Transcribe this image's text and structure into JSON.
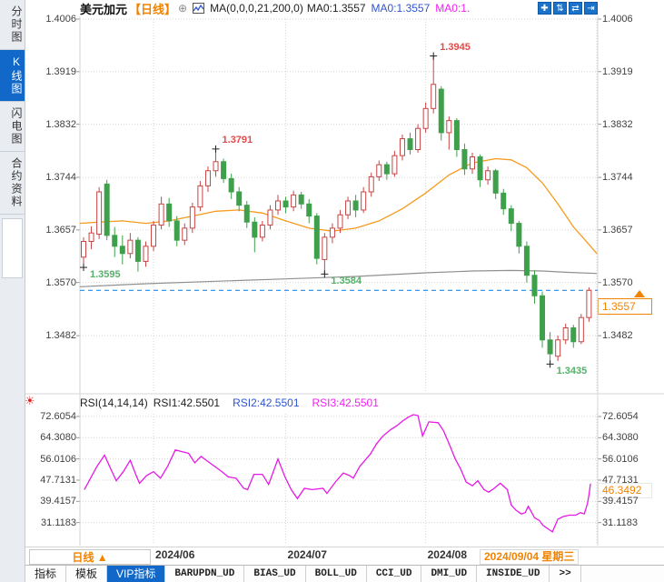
{
  "colors": {
    "up": "#c94444",
    "down": "#3fa04c",
    "ann_red": "#e04a4a",
    "ann_green": "#56b06a",
    "ma_fast": "#f79a1e",
    "ma_slow": "#909090",
    "last_price_line": "#1f8ceb",
    "accent_orange": "#f28300",
    "rsi_line": "#e619e6",
    "text_blue": "#2f55cf",
    "text_pink": "#ee22ee",
    "grid": "#d6d6d6",
    "selected_tab_bg": "#1168c9"
  },
  "sidebar": {
    "tabs": [
      {
        "label": "分时图",
        "selected": false
      },
      {
        "label": "K线图",
        "selected": true
      },
      {
        "label": "闪电图",
        "selected": false
      },
      {
        "label": "合约资料",
        "selected": false
      }
    ]
  },
  "header": {
    "symbol": "美元加元",
    "period_tag": "【日线】",
    "add_icon": "⊕",
    "ma_settings": "MA(0,0,0,21,200,0)",
    "ma0_dark": "MA0:1.3557",
    "ma0_blue": "MA0:1.3557",
    "ma0_pink": "MA0:1."
  },
  "toolbar": {
    "buttons": [
      {
        "name": "pan",
        "glyph": "✚"
      },
      {
        "name": "fit-vertical",
        "glyph": "⇅"
      },
      {
        "name": "auto-scale",
        "glyph": "⇄"
      },
      {
        "name": "page-forward",
        "glyph": "⇥"
      }
    ]
  },
  "price_tag": {
    "label": "1.3557"
  },
  "rsi_value_tag": {
    "label": "46.3492"
  },
  "rsi_header": {
    "params": "RSI(14,14,14)",
    "rsi1": "RSI1:42.5501",
    "rsi2": "RSI2:42.5501",
    "rsi3": "RSI3:42.5501",
    "icon": "☀"
  },
  "xaxis": {
    "period_label": "日线 ▲",
    "cursor_date": "2024/09/04 星期三"
  },
  "bottom_tabs": [
    {
      "label": "指标",
      "selected": false,
      "mono": false
    },
    {
      "label": "模板",
      "selected": false,
      "mono": false
    },
    {
      "label": "VIP指标",
      "selected": true,
      "mono": false
    },
    {
      "label": "BARUPDN_UD",
      "selected": false,
      "mono": true
    },
    {
      "label": "BIAS_UD",
      "selected": false,
      "mono": true
    },
    {
      "label": "BOLL_UD",
      "selected": false,
      "mono": true
    },
    {
      "label": "CCI_UD",
      "selected": false,
      "mono": true
    },
    {
      "label": "DMI_UD",
      "selected": false,
      "mono": true
    },
    {
      "label": "INSIDE_UD",
      "selected": false,
      "mono": true
    },
    {
      "label": ">>",
      "selected": false,
      "mono": true
    }
  ],
  "chart_data": [
    {
      "type": "candlestick",
      "title": "美元加元 日线",
      "y_ticks": [
        1.4006,
        1.3919,
        1.3832,
        1.3744,
        1.3657,
        1.357,
        1.3482
      ],
      "x_ticks": [
        {
          "label": "2024/06",
          "index": 9
        },
        {
          "label": "2024/07",
          "index": 26
        },
        {
          "label": "2024/08",
          "index": 44
        }
      ],
      "last_price": 1.3557,
      "annotations": [
        {
          "label": "1.3595",
          "price": 1.3595,
          "index": 0,
          "side": "low"
        },
        {
          "label": "1.3791",
          "price": 1.3791,
          "index": 17,
          "side": "high"
        },
        {
          "label": "1.3584",
          "price": 1.3584,
          "index": 31,
          "side": "low"
        },
        {
          "label": "1.3945",
          "price": 1.3945,
          "index": 45,
          "side": "high"
        },
        {
          "label": "1.3435",
          "price": 1.3435,
          "index": 60,
          "side": "low"
        }
      ],
      "candles": [
        [
          1.3612,
          1.3645,
          1.3595,
          1.3638
        ],
        [
          1.3638,
          1.3663,
          1.3625,
          1.3652
        ],
        [
          1.365,
          1.3728,
          1.3642,
          1.372
        ],
        [
          1.3733,
          1.374,
          1.364,
          1.3648
        ],
        [
          1.3648,
          1.3662,
          1.3612,
          1.363
        ],
        [
          1.363,
          1.3648,
          1.36,
          1.3618
        ],
        [
          1.3618,
          1.3652,
          1.361,
          1.364
        ],
        [
          1.364,
          1.3645,
          1.3588,
          1.3605
        ],
        [
          1.3605,
          1.3638,
          1.3596,
          1.363
        ],
        [
          1.363,
          1.3672,
          1.3622,
          1.3665
        ],
        [
          1.3665,
          1.3712,
          1.3658,
          1.37
        ],
        [
          1.37,
          1.371,
          1.3662,
          1.3672
        ],
        [
          1.3672,
          1.368,
          1.363,
          1.364
        ],
        [
          1.364,
          1.3668,
          1.3632,
          1.366
        ],
        [
          1.366,
          1.3702,
          1.3652,
          1.3695
        ],
        [
          1.3695,
          1.3738,
          1.3688,
          1.373
        ],
        [
          1.373,
          1.3762,
          1.372,
          1.3755
        ],
        [
          1.3755,
          1.3791,
          1.3745,
          1.377
        ],
        [
          1.377,
          1.3775,
          1.3735,
          1.3742
        ],
        [
          1.3742,
          1.375,
          1.3708,
          1.372
        ],
        [
          1.372,
          1.3728,
          1.3688,
          1.3698
        ],
        [
          1.3698,
          1.3705,
          1.366,
          1.367
        ],
        [
          1.367,
          1.3678,
          1.362,
          1.3645
        ],
        [
          1.3645,
          1.3672,
          1.3638,
          1.3665
        ],
        [
          1.3665,
          1.3698,
          1.3658,
          1.369
        ],
        [
          1.369,
          1.3715,
          1.3682,
          1.3705
        ],
        [
          1.3705,
          1.3712,
          1.3685,
          1.3695
        ],
        [
          1.3695,
          1.3722,
          1.3688,
          1.3715
        ],
        [
          1.3715,
          1.372,
          1.3692,
          1.37
        ],
        [
          1.37,
          1.3708,
          1.3668,
          1.368
        ],
        [
          1.368,
          1.3685,
          1.36,
          1.361
        ],
        [
          1.3608,
          1.3652,
          1.3584,
          1.3645
        ],
        [
          1.3645,
          1.3668,
          1.3635,
          1.366
        ],
        [
          1.366,
          1.369,
          1.3652,
          1.3682
        ],
        [
          1.3682,
          1.3712,
          1.3675,
          1.3705
        ],
        [
          1.3705,
          1.3715,
          1.3678,
          1.369
        ],
        [
          1.369,
          1.3728,
          1.3685,
          1.372
        ],
        [
          1.372,
          1.3752,
          1.3712,
          1.3745
        ],
        [
          1.3745,
          1.3772,
          1.3738,
          1.3765
        ],
        [
          1.3765,
          1.377,
          1.374,
          1.375
        ],
        [
          1.375,
          1.3788,
          1.3745,
          1.378
        ],
        [
          1.378,
          1.3815,
          1.3772,
          1.3808
        ],
        [
          1.3808,
          1.3818,
          1.3782,
          1.379
        ],
        [
          1.379,
          1.3832,
          1.3785,
          1.3825
        ],
        [
          1.3825,
          1.3868,
          1.3818,
          1.3858
        ],
        [
          1.3858,
          1.3945,
          1.385,
          1.3898
        ],
        [
          1.389,
          1.3895,
          1.3805,
          1.3818
        ],
        [
          1.3818,
          1.3845,
          1.379,
          1.3838
        ],
        [
          1.3838,
          1.3842,
          1.3778,
          1.379
        ],
        [
          1.379,
          1.38,
          1.3748,
          1.3758
        ],
        [
          1.3758,
          1.3785,
          1.375,
          1.3778
        ],
        [
          1.3778,
          1.3782,
          1.3728,
          1.374
        ],
        [
          1.374,
          1.3762,
          1.3732,
          1.3755
        ],
        [
          1.3755,
          1.3758,
          1.3708,
          1.3718
        ],
        [
          1.3718,
          1.3725,
          1.3682,
          1.3692
        ],
        [
          1.3692,
          1.3698,
          1.3655,
          1.3668
        ],
        [
          1.3668,
          1.3672,
          1.3618,
          1.363
        ],
        [
          1.363,
          1.3638,
          1.357,
          1.3582
        ],
        [
          1.3582,
          1.359,
          1.3535,
          1.3548
        ],
        [
          1.3548,
          1.3555,
          1.3462,
          1.3475
        ],
        [
          1.3475,
          1.3488,
          1.3435,
          1.3452
        ],
        [
          1.3448,
          1.3482,
          1.344,
          1.3475
        ],
        [
          1.3475,
          1.3502,
          1.3468,
          1.3495
        ],
        [
          1.3495,
          1.35,
          1.3462,
          1.3472
        ],
        [
          1.3472,
          1.3518,
          1.3468,
          1.3512
        ],
        [
          1.3512,
          1.3562,
          1.3505,
          1.3557
        ]
      ],
      "ma_fast": {
        "name": "MA21",
        "points": [
          [
            -0.5,
            1.3668
          ],
          [
            2,
            1.367
          ],
          [
            5,
            1.3672
          ],
          [
            8,
            1.3668
          ],
          [
            11,
            1.3672
          ],
          [
            14,
            1.368
          ],
          [
            17,
            1.3688
          ],
          [
            20,
            1.369
          ],
          [
            23,
            1.3685
          ],
          [
            26,
            1.3672
          ],
          [
            29,
            1.366
          ],
          [
            32,
            1.3655
          ],
          [
            35,
            1.366
          ],
          [
            38,
            1.3672
          ],
          [
            41,
            1.3692
          ],
          [
            44,
            1.3718
          ],
          [
            47,
            1.3748
          ],
          [
            50,
            1.3768
          ],
          [
            53,
            1.3775
          ],
          [
            55,
            1.3773
          ],
          [
            57,
            1.376
          ],
          [
            59,
            1.3735
          ],
          [
            61,
            1.37
          ],
          [
            63,
            1.3662
          ],
          [
            65,
            1.3633
          ],
          [
            66,
            1.3618
          ]
        ]
      },
      "ma_slow": {
        "name": "MA200",
        "points": [
          [
            -0.5,
            1.3563
          ],
          [
            8,
            1.3568
          ],
          [
            17,
            1.3572
          ],
          [
            26,
            1.3576
          ],
          [
            35,
            1.358
          ],
          [
            44,
            1.3586
          ],
          [
            50,
            1.3589
          ],
          [
            55,
            1.359
          ],
          [
            59,
            1.3589
          ],
          [
            62,
            1.3587
          ],
          [
            66,
            1.3585
          ]
        ]
      }
    },
    {
      "type": "line",
      "name": "RSI",
      "y_ticks": [
        72.6054,
        64.308,
        56.0106,
        47.7131,
        39.4157,
        31.1183
      ],
      "last_value": 46.3492,
      "points": [
        [
          0.1,
          44
        ],
        [
          0.9,
          48.5
        ],
        [
          1.7,
          53
        ],
        [
          2.7,
          57.5
        ],
        [
          3.5,
          52
        ],
        [
          4.2,
          47.5
        ],
        [
          5.1,
          51
        ],
        [
          6.0,
          55.5
        ],
        [
          6.7,
          50
        ],
        [
          7.2,
          46.5
        ],
        [
          8.1,
          49.5
        ],
        [
          9.0,
          51
        ],
        [
          9.9,
          48.5
        ],
        [
          10.8,
          53
        ],
        [
          11.8,
          59.5
        ],
        [
          12.7,
          58.8
        ],
        [
          13.5,
          58.2
        ],
        [
          14.3,
          54.5
        ],
        [
          15.1,
          57
        ],
        [
          15.9,
          55.2
        ],
        [
          16.9,
          53
        ],
        [
          17.8,
          51
        ],
        [
          18.6,
          49
        ],
        [
          19.6,
          48.5
        ],
        [
          20.6,
          44.5
        ],
        [
          21.1,
          44
        ],
        [
          21.9,
          50
        ],
        [
          23.0,
          50
        ],
        [
          23.8,
          46
        ],
        [
          25.0,
          56
        ],
        [
          25.9,
          49
        ],
        [
          26.7,
          44
        ],
        [
          27.5,
          40.5
        ],
        [
          28.4,
          44.5
        ],
        [
          29.4,
          44
        ],
        [
          30.8,
          44.5
        ],
        [
          31.3,
          42.5
        ],
        [
          32.4,
          47
        ],
        [
          33.4,
          50.5
        ],
        [
          34.2,
          49.5
        ],
        [
          34.7,
          48.5
        ],
        [
          35.5,
          53
        ],
        [
          36.9,
          58
        ],
        [
          37.7,
          62
        ],
        [
          38.5,
          65
        ],
        [
          39.5,
          67.5
        ],
        [
          40.3,
          69
        ],
        [
          41.1,
          71
        ],
        [
          41.8,
          72.4
        ],
        [
          42.4,
          73.3
        ],
        [
          43.0,
          73.0
        ],
        [
          43.6,
          65
        ],
        [
          44.4,
          70.5
        ],
        [
          45.6,
          70.2
        ],
        [
          46.3,
          67
        ],
        [
          47.0,
          62
        ],
        [
          47.8,
          56
        ],
        [
          48.5,
          52
        ],
        [
          49.2,
          47
        ],
        [
          50.0,
          45.5
        ],
        [
          50.7,
          47.5
        ],
        [
          51.5,
          44
        ],
        [
          52.1,
          43
        ],
        [
          52.8,
          44.5
        ],
        [
          53.6,
          46.5
        ],
        [
          54.5,
          44
        ],
        [
          55.0,
          38
        ],
        [
          55.6,
          36
        ],
        [
          56.3,
          34.5
        ],
        [
          56.8,
          35
        ],
        [
          57.2,
          37.5
        ],
        [
          58.0,
          33
        ],
        [
          58.6,
          32
        ],
        [
          59.1,
          30
        ],
        [
          59.8,
          28.5
        ],
        [
          60.3,
          27.5
        ],
        [
          61.0,
          32.5
        ],
        [
          61.7,
          33.5
        ],
        [
          62.5,
          34
        ],
        [
          63.3,
          34
        ],
        [
          63.9,
          35
        ],
        [
          64.4,
          34.5
        ],
        [
          64.8,
          38.5
        ],
        [
          65.0,
          42
        ],
        [
          65.2,
          46.35
        ]
      ]
    }
  ]
}
